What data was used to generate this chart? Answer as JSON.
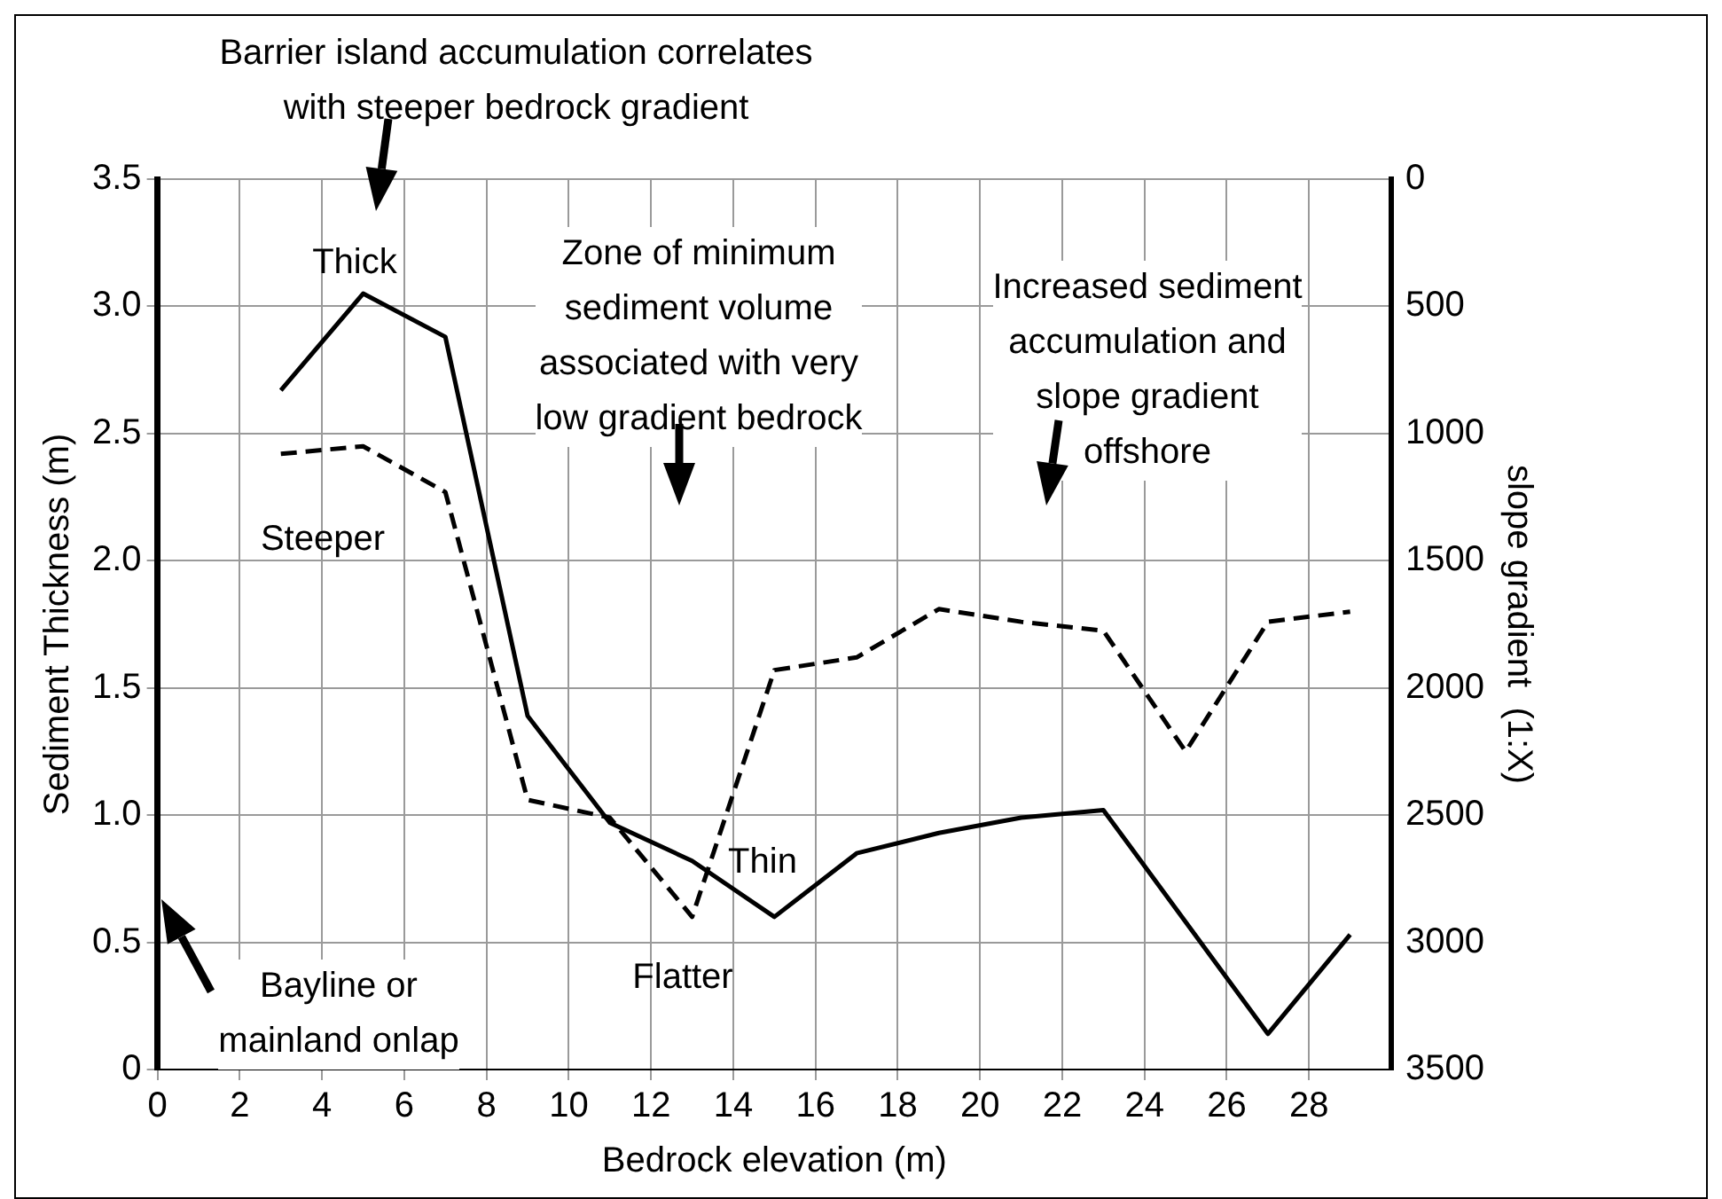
{
  "chart_data": {
    "type": "line",
    "xlabel": "Bedrock elevation (m)",
    "ylabel": "Sediment Thickness (m)",
    "y2label": "slope gradient  (1:X)",
    "series": [
      {
        "color": "#000000",
        "line_style": "solid",
        "x": [
          3,
          5,
          7,
          9,
          11,
          13,
          15,
          17,
          19,
          21,
          23,
          27,
          29
        ],
        "values": [
          2.67,
          3.05,
          2.88,
          1.39,
          0.97,
          0.82,
          0.6,
          0.85,
          0.93,
          0.99,
          1.02,
          0.14,
          0.53
        ]
      },
      {
        "color": "#000000",
        "line_style": "dashed",
        "axis": "y2",
        "x": [
          3,
          5,
          7,
          9,
          11,
          13,
          15,
          17,
          19,
          21,
          23,
          25,
          27,
          29
        ],
        "values": [
          1080,
          1050,
          1230,
          2440,
          2510,
          2900,
          1930,
          1880,
          1690,
          1740,
          1775,
          2250,
          1740,
          1700
        ]
      }
    ],
    "xlim": [
      0,
      30
    ],
    "xticks": [
      0,
      2,
      4,
      6,
      8,
      10,
      12,
      14,
      16,
      18,
      20,
      22,
      24,
      26,
      28
    ],
    "ylim": [
      0,
      3.5
    ],
    "yticks": [
      {
        "value": 0,
        "label": "0"
      },
      {
        "value": 0.5,
        "label": "0.5"
      },
      {
        "value": 1,
        "label": "1.0"
      },
      {
        "value": 1.5,
        "label": "1.5"
      },
      {
        "value": 2,
        "label": "2.0"
      },
      {
        "value": 2.5,
        "label": "2.5"
      },
      {
        "value": 3,
        "label": "3.0"
      },
      {
        "value": 3.5,
        "label": "3.5"
      }
    ],
    "y2lim": [
      3500,
      0
    ],
    "y2ticks": [
      0,
      500,
      1000,
      1500,
      2000,
      2500,
      3000,
      3500
    ],
    "grid": true,
    "legend": false,
    "marker": "none",
    "annotations": [
      "Barrier island accumulation correlates with steeper bedrock gradient",
      "Zone of minimum sediment volume associated with very low gradient bedrock",
      "Increased sediment accumulation and slope gradient offshore",
      "Bayline or mainland onlap",
      "Thick",
      "Steeper",
      "Thin",
      "Flatter"
    ]
  }
}
